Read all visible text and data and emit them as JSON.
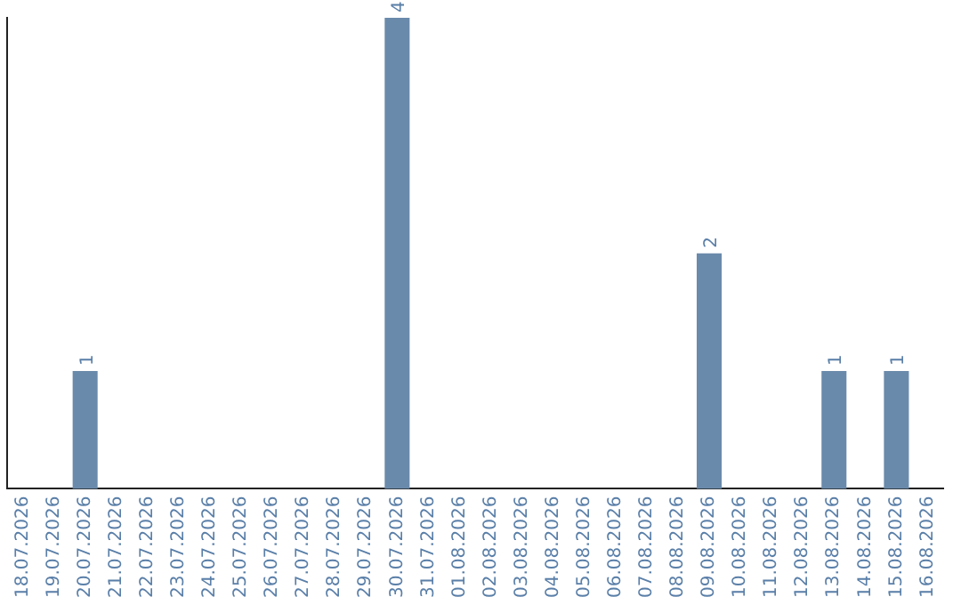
{
  "chart_data": {
    "type": "bar",
    "categories": [
      "18.07.2026",
      "19.07.2026",
      "20.07.2026",
      "21.07.2026",
      "22.07.2026",
      "23.07.2026",
      "24.07.2026",
      "25.07.2026",
      "26.07.2026",
      "27.07.2026",
      "28.07.2026",
      "29.07.2026",
      "30.07.2026",
      "31.07.2026",
      "01.08.2026",
      "02.08.2026",
      "03.08.2026",
      "04.08.2026",
      "05.08.2026",
      "06.08.2026",
      "07.08.2026",
      "08.08.2026",
      "09.08.2026",
      "10.08.2026",
      "11.08.2026",
      "12.08.2026",
      "13.08.2026",
      "14.08.2026",
      "15.08.2026",
      "16.08.2026"
    ],
    "values": [
      0,
      0,
      1,
      0,
      0,
      0,
      0,
      0,
      0,
      0,
      0,
      0,
      4,
      0,
      0,
      0,
      0,
      0,
      0,
      0,
      0,
      0,
      2,
      0,
      0,
      0,
      1,
      0,
      1,
      0
    ],
    "value_labels": [
      null,
      null,
      "1",
      null,
      null,
      null,
      null,
      null,
      null,
      null,
      null,
      null,
      "4",
      null,
      null,
      null,
      null,
      null,
      null,
      null,
      null,
      null,
      "2",
      null,
      null,
      null,
      "1",
      null,
      "1",
      null
    ],
    "color": "#6a8aab",
    "ylim": [
      0,
      4
    ],
    "grid": false,
    "legend": false,
    "tick_labels": "x"
  }
}
